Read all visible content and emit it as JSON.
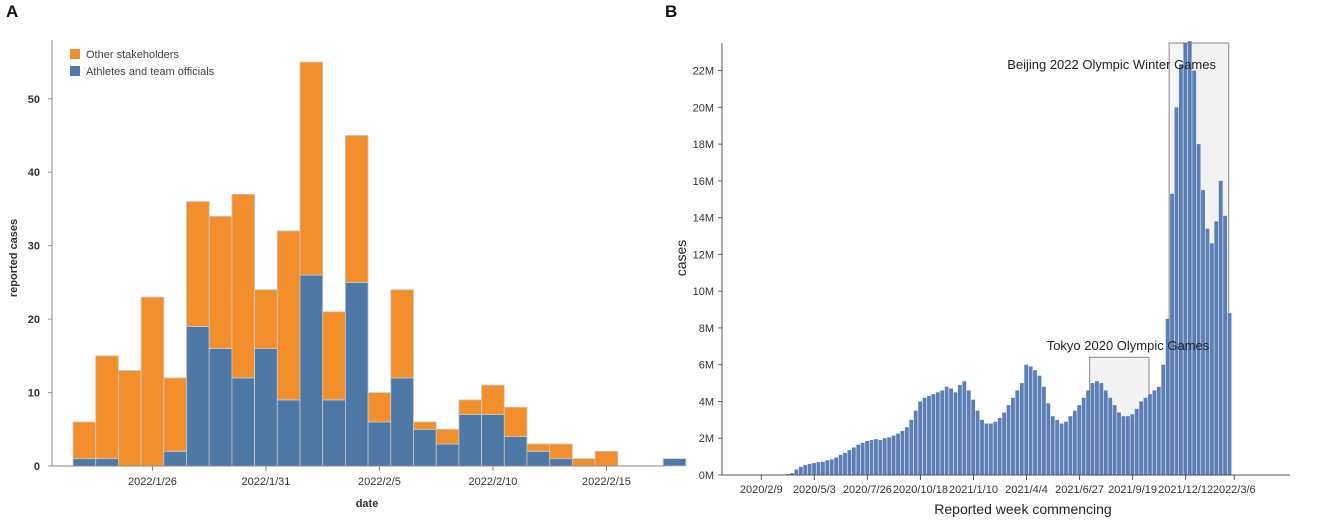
{
  "panels": {
    "a": "A",
    "b": "B"
  },
  "chart_data": [
    {
      "type": "bar",
      "stacked": true,
      "title": "",
      "xlabel": "date",
      "ylabel": "reported cases",
      "ylim": [
        0,
        58
      ],
      "yticks": [
        0,
        10,
        20,
        30,
        40,
        50
      ],
      "categories": [
        "2022/1/23",
        "2022/1/24",
        "2022/1/25",
        "2022/1/26",
        "2022/1/27",
        "2022/1/28",
        "2022/1/29",
        "2022/1/30",
        "2022/1/31",
        "2022/2/1",
        "2022/2/2",
        "2022/2/3",
        "2022/2/4",
        "2022/2/5",
        "2022/2/6",
        "2022/2/7",
        "2022/2/8",
        "2022/2/9",
        "2022/2/10",
        "2022/2/11",
        "2022/2/12",
        "2022/2/13",
        "2022/2/14",
        "2022/2/15",
        "2022/2/16",
        "2022/2/17",
        "2022/2/18"
      ],
      "xtick_labels": [
        "2022/1/26",
        "2022/1/31",
        "2022/2/5",
        "2022/2/10",
        "2022/2/15"
      ],
      "series": [
        {
          "name": "Athletes and team officials",
          "color": "#4e79a7",
          "values": [
            1,
            1,
            0,
            0,
            2,
            19,
            16,
            12,
            16,
            9,
            26,
            9,
            25,
            6,
            12,
            5,
            3,
            7,
            7,
            4,
            2,
            1,
            0,
            0,
            0,
            0,
            1
          ]
        },
        {
          "name": "Other stakeholders",
          "color": "#f28e2b",
          "values": [
            5,
            14,
            13,
            23,
            10,
            17,
            18,
            25,
            8,
            23,
            29,
            12,
            20,
            4,
            12,
            1,
            2,
            2,
            4,
            4,
            1,
            2,
            1,
            2,
            0,
            0,
            0
          ]
        }
      ],
      "legend": [
        "Other stakeholders",
        "Athletes and team officials"
      ],
      "legend_position": "top-left"
    },
    {
      "type": "bar",
      "title": "",
      "xlabel": "Reported week commencing",
      "ylabel": "cases",
      "ylim": [
        0,
        23.5
      ],
      "yunit": "M",
      "ytick_labels": [
        "0M",
        "2M",
        "4M",
        "6M",
        "8M",
        "10M",
        "12M",
        "14M",
        "16M",
        "18M",
        "20M",
        "22M"
      ],
      "xtick_labels": [
        "2020/2/9",
        "2020/5/3",
        "2020/7/26",
        "2020/10/18",
        "2021/1/10",
        "2021/4/4",
        "2021/6/27",
        "2021/9/19",
        "2021/12/12",
        "2022/3/6"
      ],
      "color": "#5b7fb5",
      "values": [
        0,
        0,
        0,
        0,
        0,
        0,
        0,
        0,
        0,
        0,
        0,
        0.05,
        0.1,
        0.3,
        0.45,
        0.55,
        0.6,
        0.65,
        0.7,
        0.72,
        0.8,
        0.85,
        0.95,
        1.1,
        1.2,
        1.35,
        1.5,
        1.65,
        1.75,
        1.85,
        1.9,
        1.95,
        1.9,
        2.0,
        2.05,
        2.15,
        2.25,
        2.4,
        2.6,
        3.0,
        3.5,
        4.0,
        4.2,
        4.3,
        4.4,
        4.5,
        4.6,
        4.8,
        4.7,
        4.5,
        4.9,
        5.1,
        4.6,
        4.1,
        3.5,
        3.0,
        2.8,
        2.8,
        2.9,
        3.1,
        3.4,
        3.8,
        4.2,
        4.6,
        5.0,
        6.0,
        5.9,
        5.7,
        5.4,
        4.8,
        3.9,
        3.2,
        3.0,
        2.8,
        2.9,
        3.2,
        3.5,
        3.8,
        4.2,
        4.6,
        5.0,
        5.1,
        5.0,
        4.6,
        4.2,
        3.8,
        3.4,
        3.2,
        3.2,
        3.3,
        3.6,
        4.0,
        4.2,
        4.4,
        4.6,
        4.8,
        6.0,
        8.5,
        15.3,
        20.0,
        22.3,
        23.5,
        23.6,
        22.0,
        18.0,
        15.5,
        13.4,
        12.6,
        13.8,
        16.0,
        14.1,
        8.8
      ],
      "annotations": [
        {
          "label": "Tokyo 2020 Olympic Games",
          "from_week": 80,
          "to_week": 92
        },
        {
          "label": "Beijing 2022 Olympic Winter Games",
          "from_week": 98,
          "to_week": 110
        }
      ]
    }
  ]
}
